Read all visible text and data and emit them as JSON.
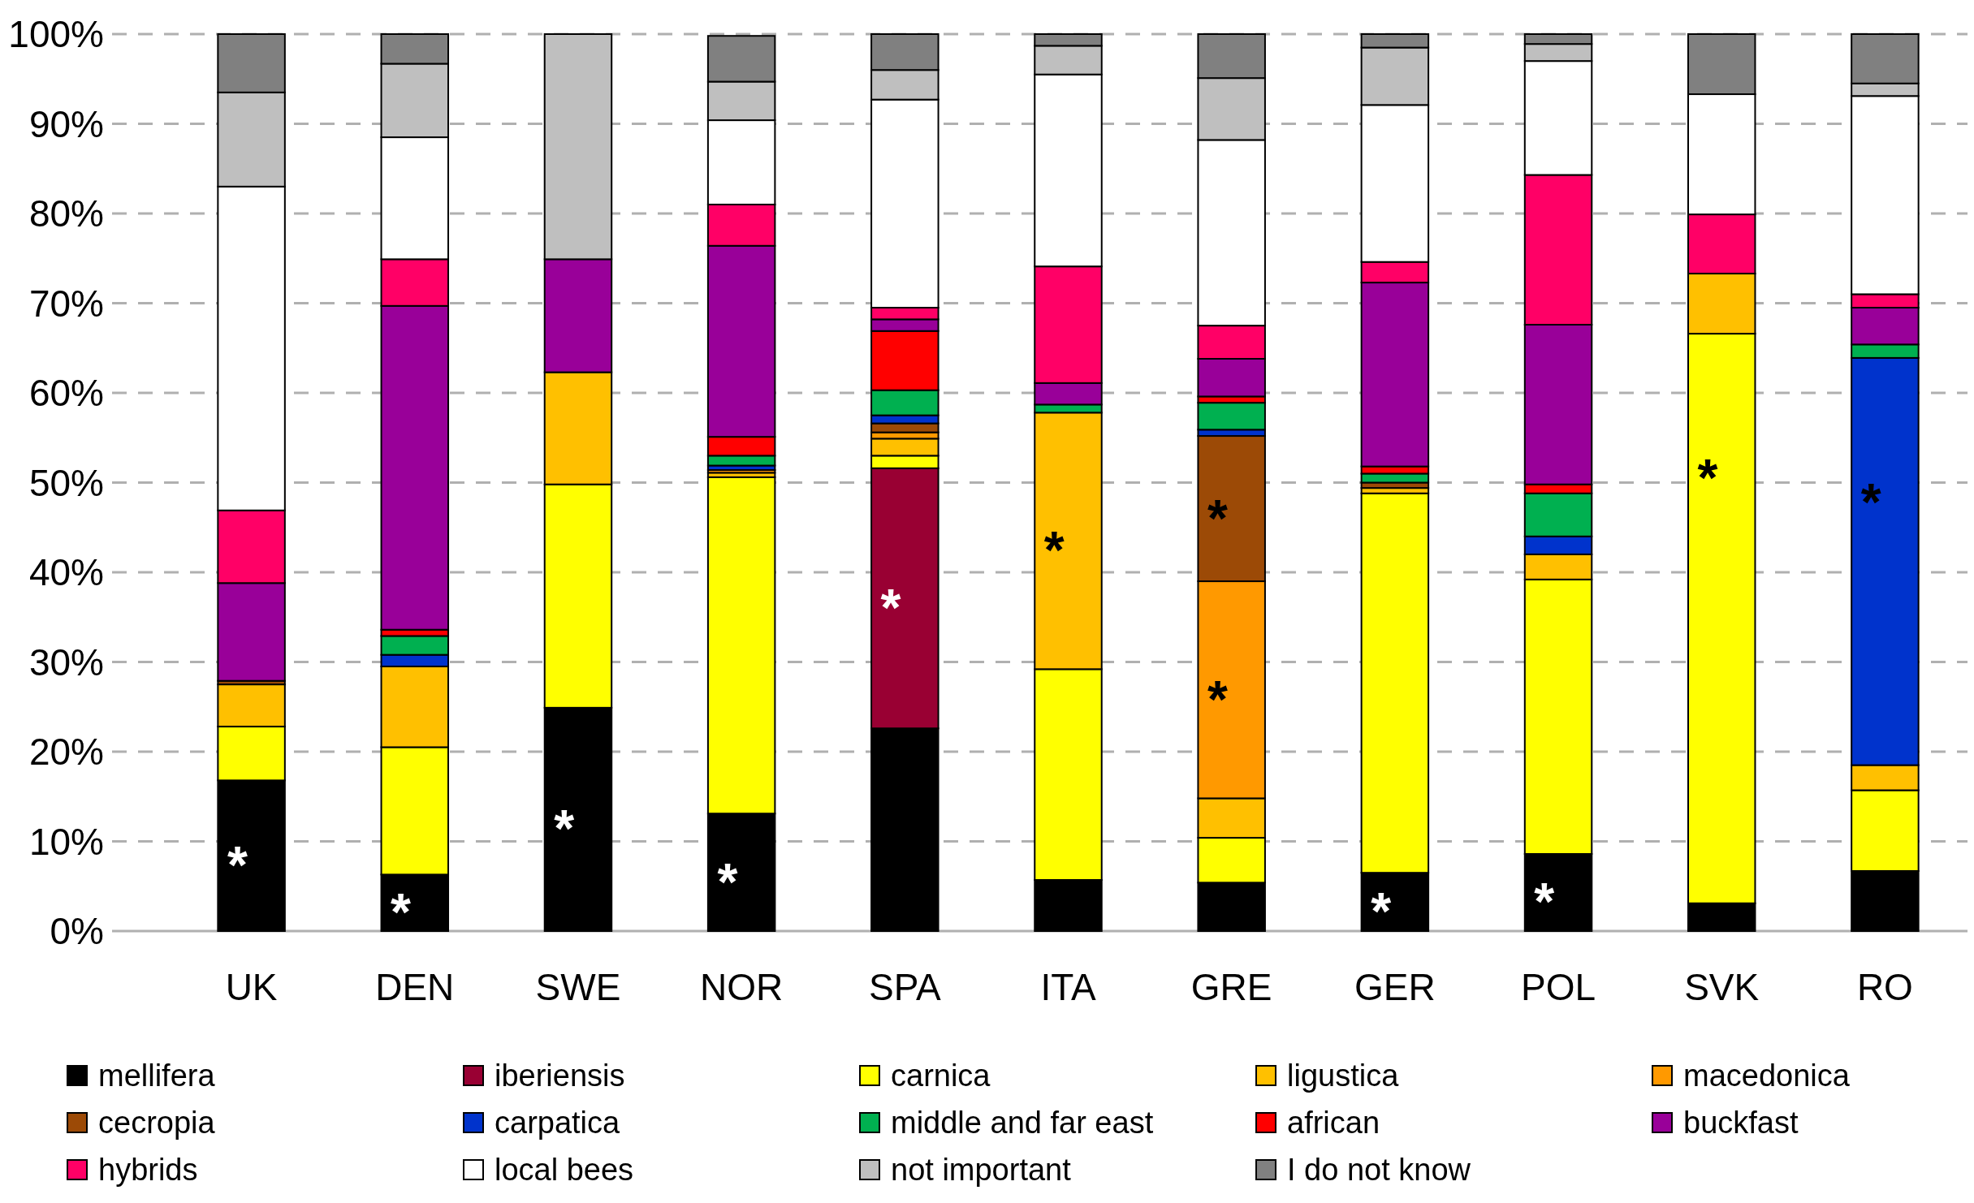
{
  "chart_data": {
    "type": "bar",
    "stacked": true,
    "grid": "y",
    "legend": "bottom",
    "categories": [
      "UK",
      "DEN",
      "SWE",
      "NOR",
      "SPA",
      "ITA",
      "GRE",
      "GER",
      "POL",
      "SVK",
      "RO"
    ],
    "ylim": [
      0,
      100
    ],
    "yticks": [
      {
        "value": 0,
        "label": "0%"
      },
      {
        "value": 10,
        "label": "10%"
      },
      {
        "value": 20,
        "label": "20%"
      },
      {
        "value": 30,
        "label": "30%"
      },
      {
        "value": 40,
        "label": "40%"
      },
      {
        "value": 50,
        "label": "50%"
      },
      {
        "value": 60,
        "label": "60%"
      },
      {
        "value": 70,
        "label": "70%"
      },
      {
        "value": 80,
        "label": "80%"
      },
      {
        "value": 90,
        "label": "90%"
      },
      {
        "value": 100,
        "label": "100%"
      }
    ],
    "series": [
      {
        "name": "mellifera",
        "color": "#000000",
        "values": [
          16.8,
          6.3,
          24.9,
          13.1,
          22.6,
          5.7,
          5.4,
          6.5,
          8.6,
          3.1,
          6.7
        ]
      },
      {
        "name": "iberiensis",
        "color": "#990033",
        "values": [
          0,
          0,
          0,
          null,
          29.0,
          0,
          0,
          0,
          0,
          0,
          0
        ]
      },
      {
        "name": "carnica",
        "color": "#ffff00",
        "values": [
          6.0,
          14.2,
          24.9,
          37.5,
          1.4,
          23.5,
          5.0,
          42.3,
          30.6,
          63.5,
          9.0
        ]
      },
      {
        "name": "ligustica",
        "color": "#ffc000",
        "values": [
          4.7,
          9.0,
          12.5,
          0.5,
          1.9,
          28.6,
          4.4,
          0.6,
          2.8,
          6.7,
          2.8
        ]
      },
      {
        "name": "macedonica",
        "color": "#ff9900",
        "values": [
          0,
          0,
          0,
          0.3,
          0.7,
          0,
          24.2,
          0,
          0,
          0,
          0
        ]
      },
      {
        "name": "cecropia",
        "color": "#9c4a06",
        "values": [
          0.4,
          0,
          0,
          0,
          1.0,
          0,
          16.2,
          0.6,
          0,
          0,
          0
        ]
      },
      {
        "name": "carpatica",
        "color": "#0033cc",
        "values": [
          0,
          1.3,
          0,
          0.5,
          0.9,
          0,
          0.7,
          0,
          2.0,
          0,
          45.4
        ]
      },
      {
        "name": "middle and far east",
        "color": "#00b050",
        "values": [
          0,
          2.1,
          0,
          1.1,
          2.8,
          0.9,
          3.0,
          1.0,
          4.8,
          0,
          1.5
        ]
      },
      {
        "name": "african",
        "color": "#ff0000",
        "values": [
          0,
          0.7,
          0,
          2.1,
          6.6,
          0,
          0.7,
          0.8,
          1.0,
          0,
          0
        ]
      },
      {
        "name": "buckfast",
        "color": "#990099",
        "values": [
          10.9,
          36.1,
          12.6,
          21.3,
          1.3,
          2.4,
          4.2,
          20.5,
          17.8,
          0,
          4.1
        ]
      },
      {
        "name": "hybrids",
        "color": "#ff0066",
        "values": [
          8.1,
          5.2,
          0,
          4.6,
          1.3,
          13.0,
          3.7,
          2.3,
          16.7,
          6.6,
          1.5
        ]
      },
      {
        "name": "local bees",
        "color": "#ffffff",
        "values": [
          36.1,
          13.6,
          0,
          9.4,
          23.2,
          21.4,
          20.7,
          17.5,
          12.7,
          13.4,
          22.1
        ]
      },
      {
        "name": "not important",
        "color": "#bfbfbf",
        "values": [
          10.5,
          8.2,
          25.1,
          4.3,
          3.3,
          3.2,
          6.9,
          6.4,
          1.9,
          0,
          1.4
        ]
      },
      {
        "name": "I do not know",
        "color": "#808080",
        "values": [
          6.5,
          3.3,
          0,
          5.1,
          4.0,
          1.3,
          4.9,
          1.5,
          1.1,
          6.7,
          5.5
        ]
      }
    ],
    "annotations": [
      {
        "text": "*",
        "x": "UK",
        "y": 16.8
      },
      {
        "text": "*",
        "x": "DEN",
        "y": 6.3
      },
      {
        "text": "*",
        "x": "SWE",
        "y": 24.9
      },
      {
        "text": "*",
        "x": "NOR",
        "y": 13.1
      },
      {
        "text": "*",
        "x": "SPA",
        "y": 51.6
      },
      {
        "text": "*",
        "x": "ITA",
        "y": 57.8
      },
      {
        "text": "*",
        "x": "GRE",
        "y": 55.2
      },
      {
        "text": "*",
        "x": "GRE",
        "y": 39.0
      },
      {
        "text": "*",
        "x": "GER",
        "y": 6.5
      },
      {
        "text": "*",
        "x": "POL",
        "y": 8.6
      },
      {
        "text": "*",
        "x": "SVK",
        "y": 66.6
      },
      {
        "text": "*",
        "x": "RO",
        "y": 63.9
      }
    ]
  }
}
